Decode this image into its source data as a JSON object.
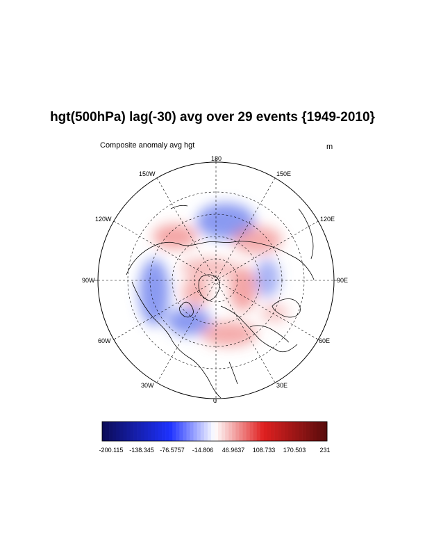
{
  "title": "hgt(500hPa) lag(-30) avg over 29 events {1949-2010}",
  "subtitle_left": "Composite anomaly avg hgt",
  "units": "m",
  "longitude_labels": {
    "top": "180",
    "bottom": "0",
    "left": "90W",
    "right": "90E",
    "upper_left_1": "150W",
    "upper_left_2": "120W",
    "upper_right_1": "150E",
    "upper_right_2": "120E",
    "lower_left_1": "60W",
    "lower_left_2": "30W",
    "lower_right_1": "60E",
    "lower_right_2": "30E"
  },
  "colorbar": {
    "labels": [
      "-200.115",
      "-138.345",
      "-76.5757",
      "-14.806",
      "46.9637",
      "108.733",
      "170.503",
      "231"
    ],
    "colors": {
      "min": "#0c0c5a",
      "mid_blue": "#1e32ff",
      "white": "#ffffff",
      "mid_red": "#e02020",
      "max": "#5a0c0c"
    }
  },
  "colors": {
    "blue_anomaly": "#5a70ee",
    "red_anomaly": "#ee5a5a",
    "coastline": "#000000",
    "grid": "#000000"
  }
}
